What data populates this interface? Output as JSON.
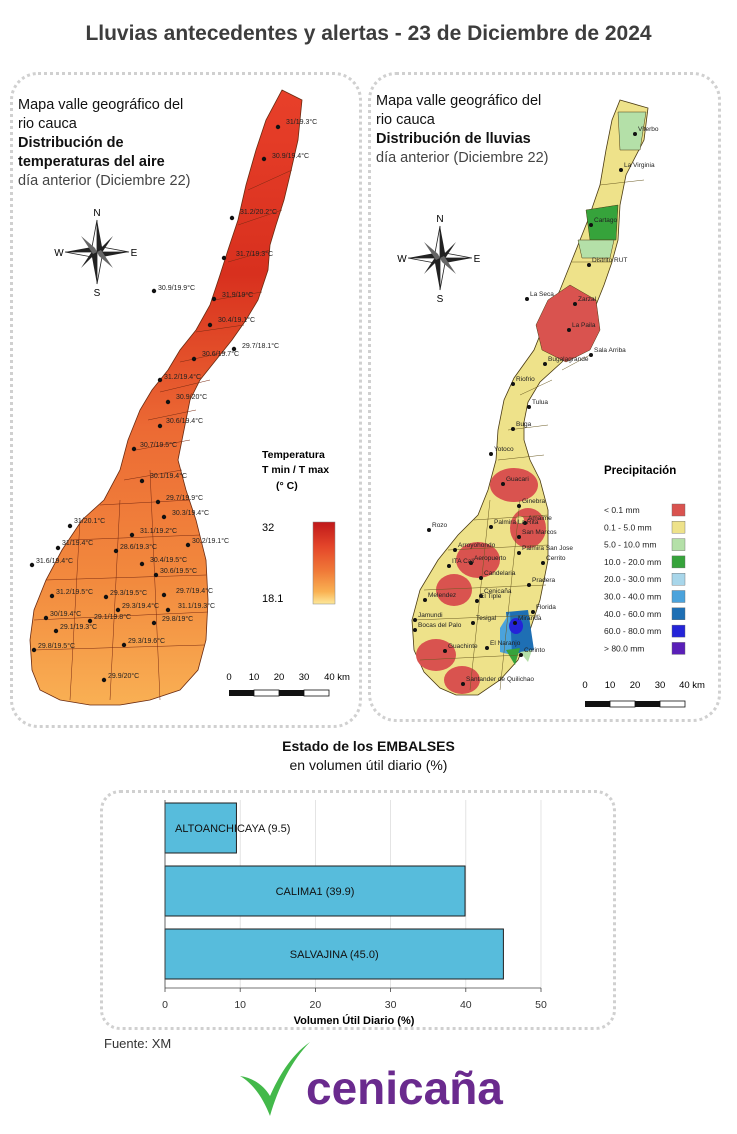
{
  "title": "Lluvias antecedentes y alertas - 23 de Diciembre de 2024",
  "temp_map": {
    "title_l1": "Mapa valle geográfico del",
    "title_l2": "rio cauca",
    "title_l3": "Distribución de",
    "title_l4": "temperaturas del aire",
    "title_l5": "día anterior (Diciembre 22)",
    "legend_title_l1": "Temperatura",
    "legend_title_l2": "T min / T max",
    "legend_title_l3": "(° C)",
    "legend_max": "32",
    "legend_min": "18.1",
    "colors": [
      "#c0181a",
      "#e4462a",
      "#f07a38",
      "#f9b152",
      "#fde89a"
    ],
    "compass": {
      "n": "N",
      "s": "S",
      "e": "E",
      "w": "W"
    },
    "scale": [
      "0",
      "10",
      "20",
      "30",
      "40 km"
    ],
    "stations": [
      "31/19.3°C",
      "30.9/19.4°C",
      "31.2/20.2°C",
      "31.7/19.3°C",
      "30.9/19.9°C",
      "31.9/19°C",
      "30.4/19.1°C",
      "29.7/18.1°C",
      "30.6/19.7°C",
      "31.2/19.4°C",
      "30.9/20°C",
      "30.6/19.4°C",
      "30.7/19.5°C",
      "30.1/19.4°C",
      "29.7/19.9°C",
      "30.3/19.4°C",
      "31/20.1°C",
      "31.1/19.2°C",
      "30.2/19.1°C",
      "31/19.4°C",
      "28.6/19.3°C",
      "30.4/19.5°C",
      "31.6/19.4°C",
      "30.6/19.5°C",
      "29.7/19.4°C",
      "31.2/19.5°C",
      "29.3/19.5°C",
      "31.1/19.3°C",
      "30/19.4°C",
      "29.3/19.4°C",
      "29.8/19°C",
      "29.1/19.3°C",
      "29.1/19.8°C",
      "29.8/19.5°C",
      "29.3/19.6°C",
      "29.9/20°C"
    ]
  },
  "rain_map": {
    "title_l1": "Mapa valle geográfico del",
    "title_l2": "rio cauca",
    "title_l3": "Distribución de lluvias",
    "title_l4": "día anterior (Diciembre 22)",
    "legend_title": "Precipitación",
    "legend": [
      {
        "label": "< 0.1 mm",
        "color": "#d9534f"
      },
      {
        "label": "0.1 - 5.0 mm",
        "color": "#eee28a"
      },
      {
        "label": "5.0 - 10.0 mm",
        "color": "#b4e0a8"
      },
      {
        "label": "10.0 - 20.0 mm",
        "color": "#36a33b"
      },
      {
        "label": "20.0 - 30.0 mm",
        "color": "#a8d6ea"
      },
      {
        "label": "30.0 - 40.0 mm",
        "color": "#4ba3dc"
      },
      {
        "label": "40.0 - 60.0 mm",
        "color": "#1e6fb4"
      },
      {
        "label": "60.0 - 80.0 mm",
        "color": "#2424d8"
      },
      {
        "label": "> 80.0 mm",
        "color": "#5a1fb8"
      }
    ],
    "compass": {
      "n": "N",
      "s": "S",
      "e": "E",
      "w": "W"
    },
    "scale": [
      "0",
      "10",
      "20",
      "30",
      "40 km"
    ],
    "places": [
      "Viterbo",
      "La Virginia",
      "Cartago",
      "Distrito RUT",
      "La Seca",
      "Zarzal",
      "La Paila",
      "Bugalagrande",
      "Sala Arriba",
      "Riofrio",
      "Tulua",
      "Buga",
      "Yotoco",
      "Guacari",
      "Ginebra",
      "Amaime",
      "Rozo",
      "Palmira La Rita",
      "San Marcos",
      "Arroyohondo",
      "Palmira San Jose",
      "Aeropuerto",
      "Cerrito",
      "ITA Cali",
      "Candelaria",
      "Pradera",
      "Cenicaña",
      "Melendez",
      "El Tiple",
      "Florida",
      "Jamundi",
      "Bocas del Palo",
      "Tesigal",
      "Miranda",
      "Guachinte",
      "El Naranjo",
      "Corinto",
      "Santander de Quilichao"
    ]
  },
  "chart_data": {
    "type": "bar",
    "orientation": "horizontal",
    "title": "Estado de los EMBALSES",
    "subtitle": "en volumen útil diario (%)",
    "categories": [
      "ALTOANCHICAYA",
      "CALIMA1",
      "SALVAJINA"
    ],
    "values": [
      9.5,
      39.9,
      45.0
    ],
    "bar_labels": [
      "ALTOANCHICAYA (9.5)",
      "CALIMA1 (39.9)",
      "SALVAJINA (45.0)"
    ],
    "xlabel": "Volumen Útil Diario (%)",
    "ylabel": "",
    "xlim": [
      0,
      50
    ],
    "xticks": [
      "0",
      "10",
      "20",
      "30",
      "40",
      "50"
    ],
    "grid": true,
    "bar_color": "#57bcdc"
  },
  "footer": {
    "source": "Fuente: XM",
    "logo_text": "cenicaña"
  }
}
